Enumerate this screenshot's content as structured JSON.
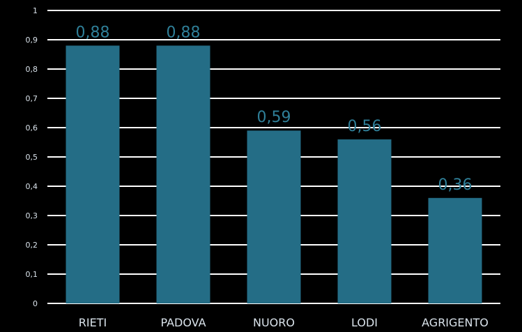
{
  "chart_data": {
    "type": "bar",
    "categories": [
      "RIETI",
      "PADOVA",
      "NUORO",
      "LODI",
      "AGRIGENTO"
    ],
    "values": [
      0.88,
      0.88,
      0.59,
      0.56,
      0.36
    ],
    "data_labels": [
      "0,88",
      "0,88",
      "0,59",
      "0,56",
      "0,36"
    ],
    "ylim": [
      0,
      1
    ],
    "yticks": [
      0,
      0.1,
      0.2,
      0.3,
      0.4,
      0.5,
      0.6,
      0.7,
      0.8,
      0.9,
      1
    ],
    "ytick_labels": [
      "0",
      "0,1",
      "0,2",
      "0,3",
      "0,4",
      "0,5",
      "0,6",
      "0,7",
      "0,8",
      "0,9",
      "1"
    ],
    "grid": true,
    "legend": "none",
    "title": "",
    "xlabel": "",
    "ylabel": "",
    "colors": {
      "bar": "#246d86",
      "label": "#2f7f98",
      "grid": "#ffffff",
      "background": "#000000",
      "text": "#d9e2ea"
    }
  }
}
